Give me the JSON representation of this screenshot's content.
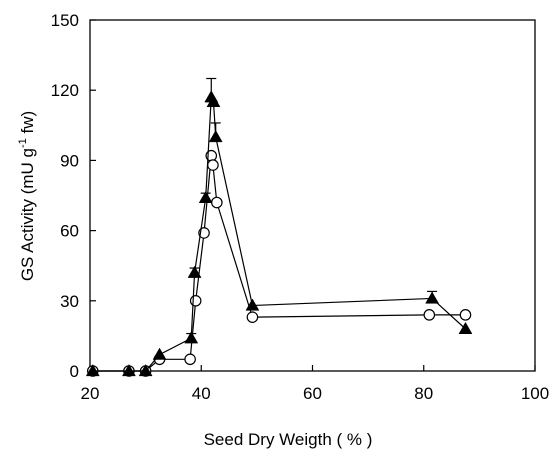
{
  "chart_data": {
    "type": "scatter",
    "xlabel": "Seed Dry Weigth ( % )",
    "ylabel_main": "GS Activity (mU g",
    "ylabel_sup": "-1",
    "ylabel_tail": " fw)",
    "xlim": [
      20,
      100
    ],
    "ylim": [
      0,
      150
    ],
    "xticks": [
      20,
      40,
      60,
      80,
      100
    ],
    "yticks": [
      0,
      30,
      60,
      90,
      120,
      150
    ],
    "grid": false,
    "legend": "none",
    "series": [
      {
        "marker": "triangle-filled",
        "color": "#000000",
        "points": [
          {
            "x": 20.5,
            "y": 0
          },
          {
            "x": 27.0,
            "y": 0
          },
          {
            "x": 30.0,
            "y": 0
          },
          {
            "x": 32.5,
            "y": 7
          },
          {
            "x": 38.2,
            "y": 14,
            "err": 2
          },
          {
            "x": 38.8,
            "y": 42,
            "err": 2
          },
          {
            "x": 40.8,
            "y": 74,
            "err": 2
          },
          {
            "x": 41.8,
            "y": 117,
            "err": 8
          },
          {
            "x": 42.2,
            "y": 115
          },
          {
            "x": 42.6,
            "y": 100,
            "err": 6
          },
          {
            "x": 49.2,
            "y": 28
          },
          {
            "x": 81.5,
            "y": 31,
            "err": 3
          },
          {
            "x": 87.5,
            "y": 18
          }
        ]
      },
      {
        "marker": "circle-open",
        "color": "#000000",
        "points": [
          {
            "x": 20.5,
            "y": 0
          },
          {
            "x": 27.0,
            "y": 0
          },
          {
            "x": 30.0,
            "y": 0
          },
          {
            "x": 32.5,
            "y": 5
          },
          {
            "x": 38.0,
            "y": 5
          },
          {
            "x": 39.0,
            "y": 30
          },
          {
            "x": 40.5,
            "y": 59
          },
          {
            "x": 41.8,
            "y": 92
          },
          {
            "x": 42.1,
            "y": 88
          },
          {
            "x": 42.8,
            "y": 72
          },
          {
            "x": 49.2,
            "y": 23
          },
          {
            "x": 81.0,
            "y": 24
          },
          {
            "x": 87.5,
            "y": 24
          }
        ]
      }
    ]
  }
}
